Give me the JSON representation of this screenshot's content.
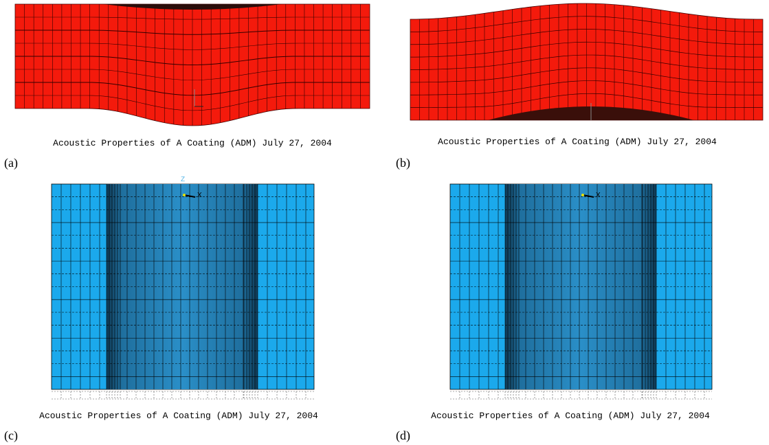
{
  "panels": [
    {
      "label": "(a)",
      "caption": "Acoustic Properties of A Coating (ADM) July 27, 2004"
    },
    {
      "label": "(b)",
      "caption": "Acoustic Properties of A Coating (ADM) July 27, 2004"
    },
    {
      "label": "(c)",
      "caption": "Acoustic Properties of A Coating (ADM) July 27, 2004",
      "axes": [
        "Z",
        "X"
      ]
    },
    {
      "label": "(d)",
      "caption": "Acoustic Properties of A Coating (ADM) July 27, 2004",
      "axes": [
        "X"
      ]
    }
  ]
}
